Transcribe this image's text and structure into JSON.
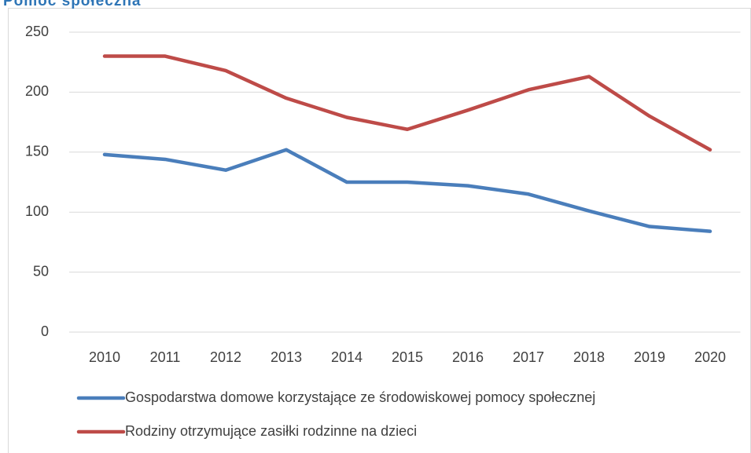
{
  "chart_data": {
    "type": "line",
    "title": "Pomoc społeczna",
    "categories": [
      "2010",
      "2011",
      "2012",
      "2013",
      "2014",
      "2015",
      "2016",
      "2017",
      "2018",
      "2019",
      "2020"
    ],
    "series": [
      {
        "name": "Gospodarstwa domowe korzystające ze środowiskowej pomocy społecznej",
        "color": "#4a7ebb",
        "values": [
          148,
          144,
          135,
          152,
          125,
          125,
          122,
          115,
          101,
          88,
          84
        ]
      },
      {
        "name": "Rodziny otrzymujące zasiłki rodzinne na dzieci",
        "color": "#be4b48",
        "values": [
          230,
          230,
          218,
          195,
          179,
          169,
          185,
          202,
          213,
          180,
          152
        ]
      }
    ],
    "ylim": [
      0,
      250
    ],
    "yticks": [
      0,
      50,
      100,
      150,
      200,
      250
    ],
    "grid": true,
    "legend": "bottom"
  }
}
